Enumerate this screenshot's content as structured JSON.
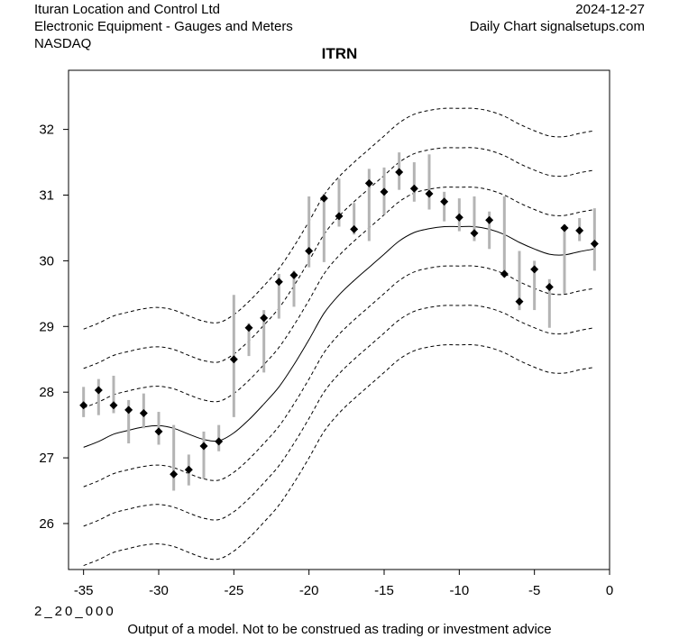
{
  "header": {
    "company": "Ituran Location and Control Ltd",
    "industry": "Electronic Equipment - Gauges and Meters",
    "exchange": "NASDAQ",
    "date": "2024-12-27",
    "source": "Daily Chart signalsetups.com"
  },
  "footer": {
    "code": "2_20_000",
    "disclaimer": "Output of a model. Not to be construed as trading or investment advice"
  },
  "chart_data": {
    "type": "line",
    "title": "ITRN",
    "xlabel": "",
    "ylabel": "",
    "xlim": [
      -36,
      0
    ],
    "ylim": [
      25.3,
      32.9
    ],
    "x_ticks": [
      -35,
      -30,
      -25,
      -20,
      -15,
      -10,
      -5,
      0
    ],
    "y_ticks": [
      26,
      27,
      28,
      29,
      30,
      31,
      32
    ],
    "grid": false,
    "bars": [
      {
        "x": -35,
        "low": 27.62,
        "high": 28.08,
        "close": 27.8
      },
      {
        "x": -34,
        "low": 27.65,
        "high": 28.2,
        "close": 28.03
      },
      {
        "x": -33,
        "low": 27.68,
        "high": 28.25,
        "close": 27.8
      },
      {
        "x": -32,
        "low": 27.22,
        "high": 27.88,
        "close": 27.73
      },
      {
        "x": -31,
        "low": 27.45,
        "high": 27.98,
        "close": 27.68
      },
      {
        "x": -30,
        "low": 27.2,
        "high": 27.7,
        "close": 27.4
      },
      {
        "x": -29,
        "low": 26.5,
        "high": 27.5,
        "close": 26.75
      },
      {
        "x": -28,
        "low": 26.58,
        "high": 27.05,
        "close": 26.82
      },
      {
        "x": -27,
        "low": 26.68,
        "high": 27.4,
        "close": 27.18
      },
      {
        "x": -26,
        "low": 27.1,
        "high": 27.5,
        "close": 27.25
      },
      {
        "x": -25,
        "low": 27.62,
        "high": 29.48,
        "close": 28.5
      },
      {
        "x": -24,
        "low": 28.55,
        "high": 29.05,
        "close": 28.98
      },
      {
        "x": -23,
        "low": 28.3,
        "high": 29.25,
        "close": 29.13
      },
      {
        "x": -22,
        "low": 29.12,
        "high": 29.8,
        "close": 29.68
      },
      {
        "x": -21,
        "low": 29.3,
        "high": 29.85,
        "close": 29.78
      },
      {
        "x": -20,
        "low": 29.9,
        "high": 30.98,
        "close": 30.15
      },
      {
        "x": -19,
        "low": 29.98,
        "high": 31.02,
        "close": 30.95
      },
      {
        "x": -18,
        "low": 30.52,
        "high": 31.25,
        "close": 30.68
      },
      {
        "x": -17,
        "low": 30.4,
        "high": 30.88,
        "close": 30.48
      },
      {
        "x": -16,
        "low": 30.3,
        "high": 31.4,
        "close": 31.18
      },
      {
        "x": -15,
        "low": 30.7,
        "high": 31.42,
        "close": 31.05
      },
      {
        "x": -14,
        "low": 31.08,
        "high": 31.65,
        "close": 31.35
      },
      {
        "x": -13,
        "low": 30.9,
        "high": 31.5,
        "close": 31.1
      },
      {
        "x": -12,
        "low": 30.78,
        "high": 31.62,
        "close": 31.02
      },
      {
        "x": -11,
        "low": 30.6,
        "high": 31.05,
        "close": 30.9
      },
      {
        "x": -10,
        "low": 30.45,
        "high": 30.95,
        "close": 30.66
      },
      {
        "x": -9,
        "low": 30.3,
        "high": 30.98,
        "close": 30.42
      },
      {
        "x": -8,
        "low": 30.18,
        "high": 30.75,
        "close": 30.62
      },
      {
        "x": -7,
        "low": 29.75,
        "high": 30.98,
        "close": 29.8
      },
      {
        "x": -6,
        "low": 29.25,
        "high": 30.15,
        "close": 29.38
      },
      {
        "x": -5,
        "low": 29.25,
        "high": 30.0,
        "close": 29.87
      },
      {
        "x": -4,
        "low": 28.98,
        "high": 29.72,
        "close": 29.6
      },
      {
        "x": -3,
        "low": 29.5,
        "high": 30.55,
        "close": 30.5
      },
      {
        "x": -2,
        "low": 30.3,
        "high": 30.65,
        "close": 30.46
      },
      {
        "x": -1,
        "low": 29.85,
        "high": 30.8,
        "close": 30.26
      }
    ],
    "center_line": {
      "x": [
        -35,
        -34,
        -33,
        -32,
        -31,
        -30,
        -29,
        -28,
        -27,
        -26,
        -25,
        -24,
        -23,
        -22,
        -21,
        -20,
        -19,
        -18,
        -17,
        -16,
        -15,
        -14,
        -13,
        -12,
        -11,
        -10,
        -9,
        -8,
        -7,
        -6,
        -5,
        -4,
        -3,
        -2,
        -1
      ],
      "y": [
        27.16,
        27.25,
        27.36,
        27.42,
        27.47,
        27.49,
        27.45,
        27.36,
        27.28,
        27.26,
        27.38,
        27.58,
        27.82,
        28.08,
        28.42,
        28.8,
        29.2,
        29.48,
        29.7,
        29.9,
        30.1,
        30.3,
        30.43,
        30.49,
        30.52,
        30.52,
        30.52,
        30.48,
        30.4,
        30.28,
        30.18,
        30.1,
        30.09,
        30.14,
        30.18
      ]
    },
    "band_offsets": [
      -1.8,
      -1.2,
      -0.6,
      0.6,
      1.2,
      1.8
    ]
  }
}
